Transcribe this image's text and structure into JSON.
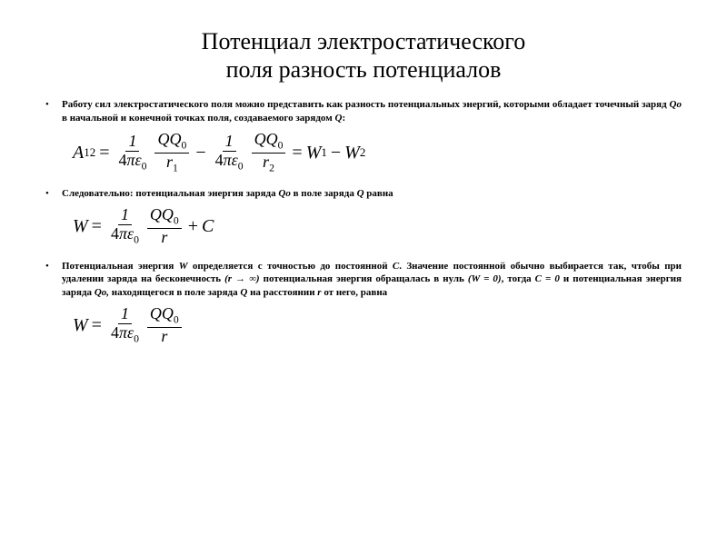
{
  "title_line1": "Потенциал электростатического",
  "title_line2": "поля разность потенциалов",
  "bullets": {
    "b1_a": "Работу сил электростатического поля  можно представить как разность потенциальных энергий, которыми обладает точечный заряд ",
    "b1_qo": "Qo",
    "b1_b": " в начальной и конечной точках поля, создаваемого зарядом ",
    "b1_q": "Q",
    "b1_c": ":",
    "b2_a": "Следовательно: потенциальная энергия заряда ",
    "b2_qo": "Qo",
    "b2_b": " в поле заряда ",
    "b2_q": "Q",
    "b2_c": " равна",
    "b3_a": "Потенциальная энергия ",
    "b3_w": "W",
    "b3_b": " определяется с точностью до постоянной ",
    "b3_cc": "С",
    "b3_c": ". Значение постоянной обычно выбирается так, чтобы при удалении заряда на бесконечность ",
    "b3_r": "(r → ∞)",
    "b3_d": " потенциальная энергия обращалась в нуль ",
    "b3_w0": "(W = 0)",
    "b3_e": ", тогда ",
    "b3_c0": "С = 0",
    "b3_f": " и потенциальная энергия заряда ",
    "b3_qo": "Qo,",
    "b3_g": " находящегося в поле заряда ",
    "b3_q": "Q",
    "b3_h": " на расстоянии ",
    "b3_rr": "r",
    "b3_i": " от него, равна"
  },
  "formulas": {
    "f1": {
      "A": "A",
      "s12": "12",
      "eq": "=",
      "one": "1",
      "four": "4",
      "pi": "π",
      "eps": "ε",
      "z": "0",
      "Q": "Q",
      "Qb": "Q",
      "r": "r",
      "s1": "1",
      "s2": "2",
      "minus": "−",
      "W": "W"
    },
    "f2": {
      "W": "W",
      "eq": "=",
      "one": "1",
      "four": "4",
      "pi": "π",
      "eps": "ε",
      "z": "0",
      "Q": "Q",
      "Qb": "Q",
      "r": "r",
      "plus": "+",
      "C": "C"
    },
    "f3": {
      "W": "W",
      "eq": "=",
      "one": "1",
      "four": "4",
      "pi": "π",
      "eps": "ε",
      "z": "0",
      "Q": "Q",
      "Qb": "Q",
      "r": "r"
    }
  },
  "style": {
    "background": "#ffffff",
    "text_color": "#000000",
    "title_fontsize": 26,
    "bullet_fontsize": 11,
    "formula_fontsize": 20
  }
}
